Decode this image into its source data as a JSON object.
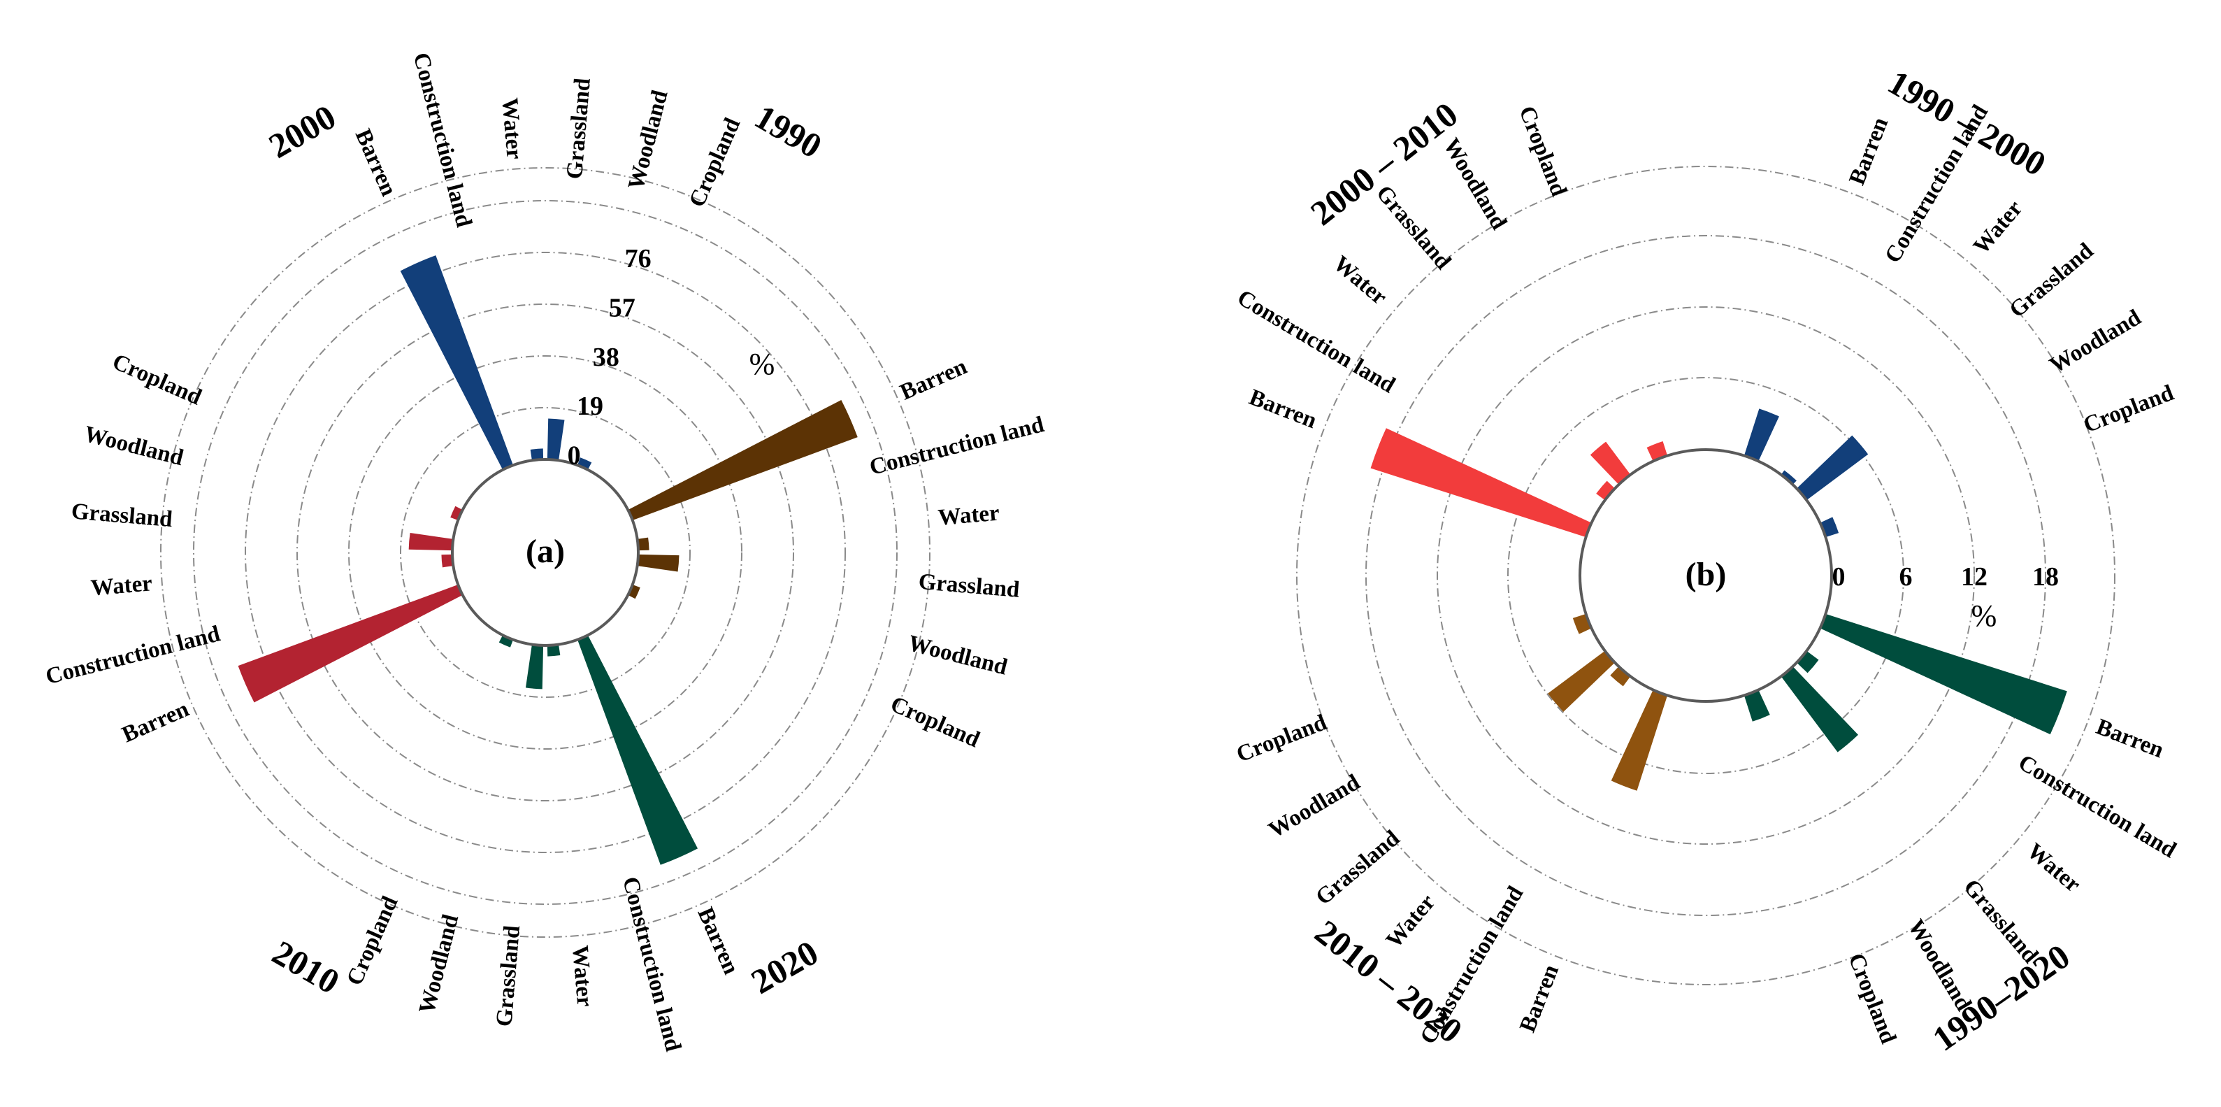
{
  "chart_data": [
    {
      "type": "bar",
      "polar": true,
      "panel_label": "(a)",
      "unit": "%",
      "radial_ticks": [
        "0",
        "19",
        "38",
        "57",
        "76"
      ],
      "rlim": [
        0,
        95
      ],
      "grid": true,
      "groups": [
        {
          "name": "1990",
          "color": "#123f7a",
          "categories": [
            "Barren",
            "Construction land",
            "Water",
            "Grassland",
            "Woodland",
            "Cropland"
          ],
          "values": [
            82,
            0,
            4,
            15,
            0,
            3
          ]
        },
        {
          "name": "2020",
          "color": "#5c3305",
          "categories": [
            "Barren",
            "Construction land",
            "Water",
            "Grassland",
            "Woodland",
            "Cropland"
          ],
          "values": [
            88,
            0,
            4,
            15,
            0,
            3
          ]
        },
        {
          "name": "2010",
          "color": "#004d3d",
          "categories": [
            "Barren",
            "Construction land",
            "Water",
            "Grassland",
            "Woodland",
            "Cropland"
          ],
          "values": [
            88,
            0,
            4,
            16,
            0,
            3
          ]
        },
        {
          "name": "2000",
          "color": "#b32331",
          "categories": [
            "Barren",
            "Construction land",
            "Water",
            "Grassland",
            "Woodland",
            "Cropland"
          ],
          "values": [
            86,
            0,
            4,
            16,
            0,
            3
          ]
        }
      ]
    },
    {
      "type": "bar",
      "polar": true,
      "panel_label": "(b)",
      "unit": "%",
      "radial_ticks": [
        "0",
        "6",
        "12",
        "18"
      ],
      "rlim": [
        0,
        22
      ],
      "grid": true,
      "groups": [
        {
          "name": "1990 – 2000",
          "color": "#123f7a",
          "categories": [
            "Barren",
            "Construction land",
            "Water",
            "Grassland",
            "Woodland",
            "Cropland"
          ],
          "values": [
            3.6,
            0,
            0.4,
            5.6,
            0,
            1.0
          ]
        },
        {
          "name": "1990–2020",
          "color": "#004d3d",
          "categories": [
            "Barren",
            "Construction land",
            "Water",
            "Grassland",
            "Woodland",
            "Cropland"
          ],
          "values": [
            18.5,
            0,
            1.1,
            6.9,
            0,
            2.0
          ]
        },
        {
          "name": "2010 – 2020",
          "color": "#8f530f",
          "categories": [
            "Barren",
            "Construction land",
            "Water",
            "Grassland",
            "Woodland",
            "Cropland"
          ],
          "values": [
            7.3,
            0,
            0.9,
            5.2,
            0,
            1.0
          ]
        },
        {
          "name": "2000 – 2010",
          "color": "#f23c3c",
          "categories": [
            "Barren",
            "Construction land",
            "Water",
            "Grassland",
            "Woodland",
            "Cropland"
          ],
          "values": [
            16.5,
            0,
            0.8,
            3.0,
            0,
            1.1
          ]
        }
      ]
    }
  ]
}
